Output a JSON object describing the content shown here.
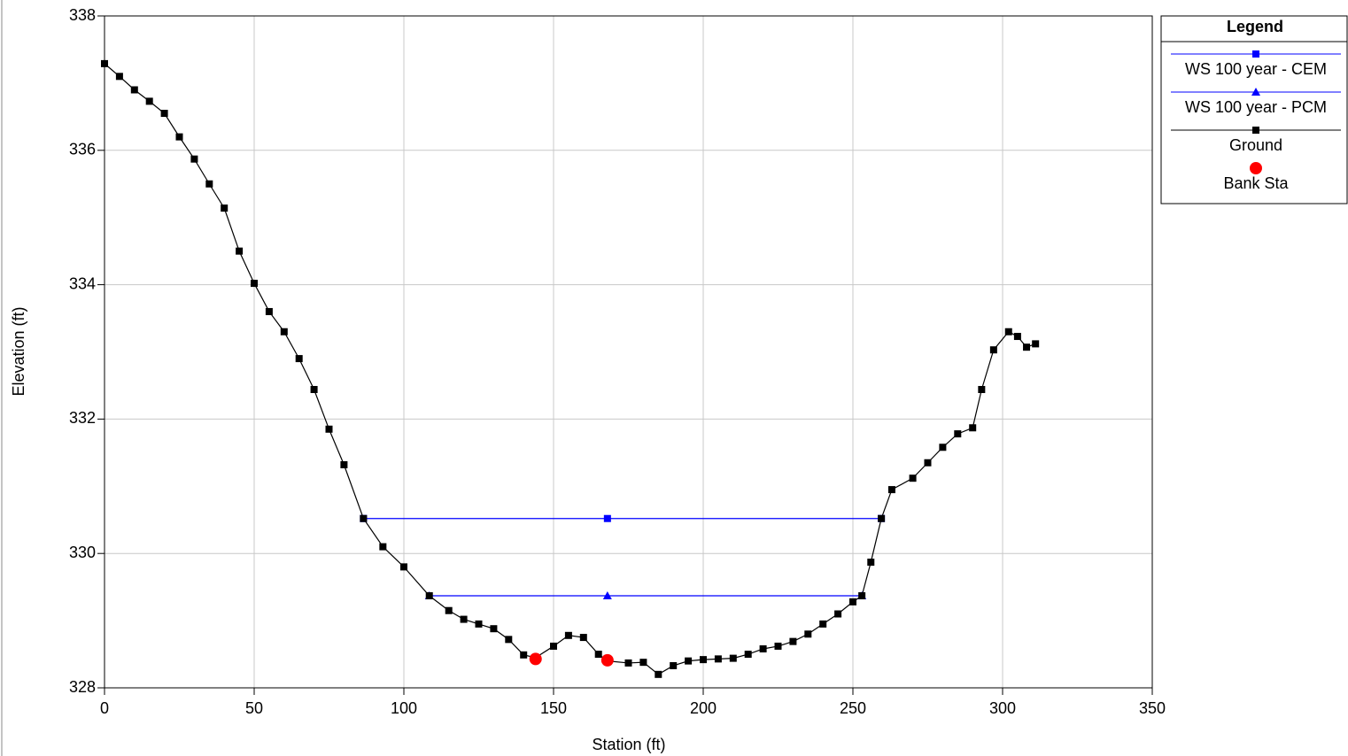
{
  "chart_data": {
    "type": "line",
    "xlabel": "Station (ft)",
    "ylabel": "Elevation (ft)",
    "xlim": [
      0,
      350
    ],
    "ylim": [
      328,
      338
    ],
    "xticks": [
      0,
      50,
      100,
      150,
      200,
      250,
      300,
      350
    ],
    "yticks": [
      328,
      330,
      332,
      334,
      336,
      338
    ],
    "grid": true,
    "legend_title": "Legend",
    "legend": "right",
    "series": [
      {
        "name": "WS 100 year - CEM",
        "color": "#0000ff",
        "marker": "square",
        "line": true,
        "x": [
          86.5,
          168,
          259.5
        ],
        "values": [
          330.52,
          330.52,
          330.52
        ]
      },
      {
        "name": "WS 100 year - PCM",
        "color": "#0000ff",
        "marker": "triangle",
        "line": true,
        "x": [
          108.5,
          168,
          253
        ],
        "values": [
          329.37,
          329.37,
          329.37
        ]
      },
      {
        "name": "Ground",
        "color": "#000000",
        "marker": "square",
        "line": true,
        "x": [
          0,
          5,
          10,
          15,
          20,
          25,
          30,
          35,
          40,
          45,
          50,
          55,
          60,
          65,
          70,
          75,
          80,
          86.5,
          93,
          100,
          108.5,
          115,
          120,
          125,
          130,
          135,
          140,
          144,
          150,
          155,
          160,
          165,
          168,
          175,
          180,
          185,
          190,
          195,
          200,
          205,
          210,
          215,
          220,
          225,
          230,
          235,
          240,
          245,
          250,
          253,
          256,
          259.5,
          263,
          270,
          275,
          280,
          285,
          290,
          293,
          297,
          302,
          305,
          308,
          311
        ],
        "values": [
          337.29,
          337.1,
          336.9,
          336.73,
          336.55,
          336.2,
          335.87,
          335.5,
          335.14,
          334.5,
          334.02,
          333.6,
          333.3,
          332.9,
          332.44,
          331.85,
          331.32,
          330.52,
          330.1,
          329.8,
          329.37,
          329.15,
          329.02,
          328.95,
          328.88,
          328.72,
          328.49,
          328.45,
          328.62,
          328.78,
          328.75,
          328.5,
          328.4,
          328.37,
          328.38,
          328.2,
          328.33,
          328.4,
          328.42,
          328.43,
          328.44,
          328.5,
          328.58,
          328.62,
          328.69,
          328.8,
          328.95,
          329.1,
          329.28,
          329.37,
          329.87,
          330.52,
          330.95,
          331.12,
          331.35,
          331.58,
          331.78,
          331.87,
          332.44,
          333.03,
          333.3,
          333.23,
          333.07,
          333.12
        ]
      },
      {
        "name": "Bank Sta",
        "color": "#ff0000",
        "marker": "circle",
        "line": false,
        "x": [
          144,
          168
        ],
        "values": [
          328.43,
          328.41
        ]
      }
    ]
  }
}
